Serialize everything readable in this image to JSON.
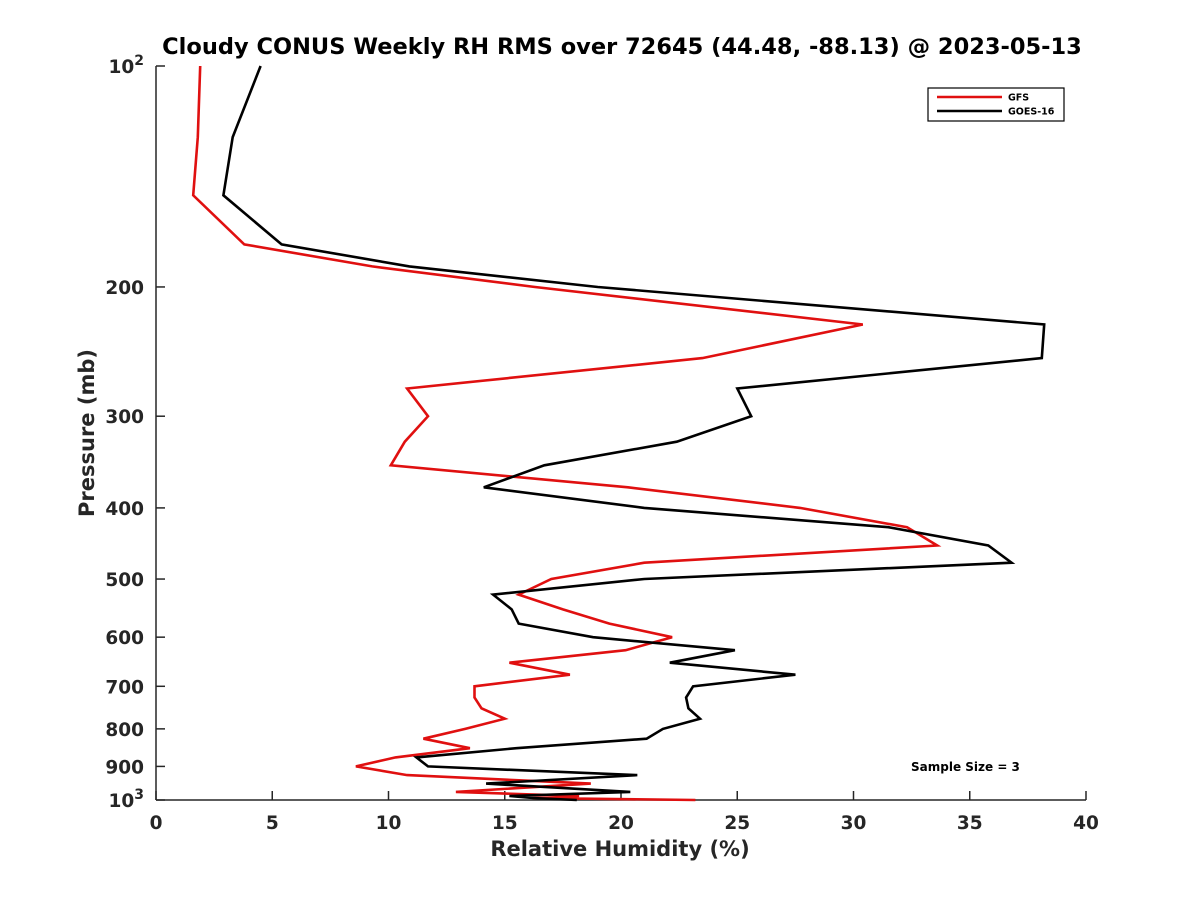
{
  "chart_data": {
    "type": "line",
    "title": "Cloudy CONUS Weekly RH RMS over 72645 (44.48, -88.13) @ 2023-05-13",
    "xlabel": "Relative Humidity (%)",
    "ylabel": "Pressure (mb)",
    "xlim": [
      0,
      40
    ],
    "ylim": [
      100,
      1000
    ],
    "yscale": "log",
    "y_reversed": true,
    "grid": false,
    "x_ticks": [
      0,
      5,
      10,
      15,
      20,
      25,
      30,
      35,
      40
    ],
    "y_ticks": [
      {
        "value": 100,
        "label_base": "10",
        "label_exp": "2"
      },
      {
        "value": 200,
        "label": "200"
      },
      {
        "value": 300,
        "label": "300"
      },
      {
        "value": 400,
        "label": "400"
      },
      {
        "value": 500,
        "label": "500"
      },
      {
        "value": 600,
        "label": "600"
      },
      {
        "value": 700,
        "label": "700"
      },
      {
        "value": 800,
        "label": "800"
      },
      {
        "value": 900,
        "label": "900"
      },
      {
        "value": 1000,
        "label_base": "10",
        "label_exp": "3"
      }
    ],
    "legend_position": "top-right",
    "annotation": "Sample Size = 3",
    "series": [
      {
        "name": "GFS",
        "color": "#e01010",
        "points": [
          {
            "x": 1.9,
            "y": 100
          },
          {
            "x": 1.8,
            "y": 125
          },
          {
            "x": 1.6,
            "y": 150
          },
          {
            "x": 3.8,
            "y": 175
          },
          {
            "x": 9.3,
            "y": 187.5
          },
          {
            "x": 16.3,
            "y": 200
          },
          {
            "x": 30.4,
            "y": 225
          },
          {
            "x": 23.5,
            "y": 250
          },
          {
            "x": 10.8,
            "y": 275
          },
          {
            "x": 11.7,
            "y": 300
          },
          {
            "x": 10.7,
            "y": 325
          },
          {
            "x": 10.1,
            "y": 350
          },
          {
            "x": 20.3,
            "y": 375
          },
          {
            "x": 27.7,
            "y": 400
          },
          {
            "x": 32.3,
            "y": 425
          },
          {
            "x": 33.6,
            "y": 450
          },
          {
            "x": 21,
            "y": 475
          },
          {
            "x": 17,
            "y": 500
          },
          {
            "x": 15.6,
            "y": 525
          },
          {
            "x": 17.5,
            "y": 550
          },
          {
            "x": 19.5,
            "y": 575
          },
          {
            "x": 22.2,
            "y": 600
          },
          {
            "x": 20.2,
            "y": 625
          },
          {
            "x": 15.2,
            "y": 650
          },
          {
            "x": 17.8,
            "y": 675
          },
          {
            "x": 13.7,
            "y": 700
          },
          {
            "x": 13.7,
            "y": 725
          },
          {
            "x": 14,
            "y": 750
          },
          {
            "x": 15,
            "y": 775
          },
          {
            "x": 13.3,
            "y": 800
          },
          {
            "x": 11.5,
            "y": 825
          },
          {
            "x": 13.5,
            "y": 850
          },
          {
            "x": 10.3,
            "y": 875
          },
          {
            "x": 8.6,
            "y": 900
          },
          {
            "x": 10.8,
            "y": 925
          },
          {
            "x": 18.7,
            "y": 950
          },
          {
            "x": 12.9,
            "y": 975
          },
          {
            "x": 18.2,
            "y": 987.5
          },
          {
            "x": 16.2,
            "y": 993.75
          },
          {
            "x": 23.2,
            "y": 1000
          }
        ]
      },
      {
        "name": "GOES-16",
        "color": "#000000",
        "points": [
          {
            "x": 4.5,
            "y": 100
          },
          {
            "x": 3.3,
            "y": 125
          },
          {
            "x": 2.9,
            "y": 150
          },
          {
            "x": 5.4,
            "y": 175
          },
          {
            "x": 10.9,
            "y": 187.5
          },
          {
            "x": 19,
            "y": 200
          },
          {
            "x": 38.2,
            "y": 225
          },
          {
            "x": 38.1,
            "y": 250
          },
          {
            "x": 25,
            "y": 275
          },
          {
            "x": 25.6,
            "y": 300
          },
          {
            "x": 22.4,
            "y": 325
          },
          {
            "x": 16.7,
            "y": 350
          },
          {
            "x": 14.1,
            "y": 375
          },
          {
            "x": 21,
            "y": 400
          },
          {
            "x": 31.5,
            "y": 425
          },
          {
            "x": 35.8,
            "y": 450
          },
          {
            "x": 36.8,
            "y": 475
          },
          {
            "x": 21,
            "y": 500
          },
          {
            "x": 14.5,
            "y": 525
          },
          {
            "x": 15.3,
            "y": 550
          },
          {
            "x": 15.6,
            "y": 575
          },
          {
            "x": 18.8,
            "y": 600
          },
          {
            "x": 24.9,
            "y": 625
          },
          {
            "x": 22.1,
            "y": 650
          },
          {
            "x": 27.5,
            "y": 675
          },
          {
            "x": 23.1,
            "y": 700
          },
          {
            "x": 22.8,
            "y": 725
          },
          {
            "x": 22.9,
            "y": 750
          },
          {
            "x": 23.4,
            "y": 775
          },
          {
            "x": 21.8,
            "y": 800
          },
          {
            "x": 21.1,
            "y": 825
          },
          {
            "x": 15.5,
            "y": 850
          },
          {
            "x": 11.2,
            "y": 875
          },
          {
            "x": 11.7,
            "y": 900
          },
          {
            "x": 20.7,
            "y": 925
          },
          {
            "x": 14.2,
            "y": 950
          },
          {
            "x": 20.4,
            "y": 975
          },
          {
            "x": 15.2,
            "y": 987.5
          },
          {
            "x": 16.2,
            "y": 993.75
          },
          {
            "x": 18.1,
            "y": 1000
          }
        ]
      }
    ]
  }
}
